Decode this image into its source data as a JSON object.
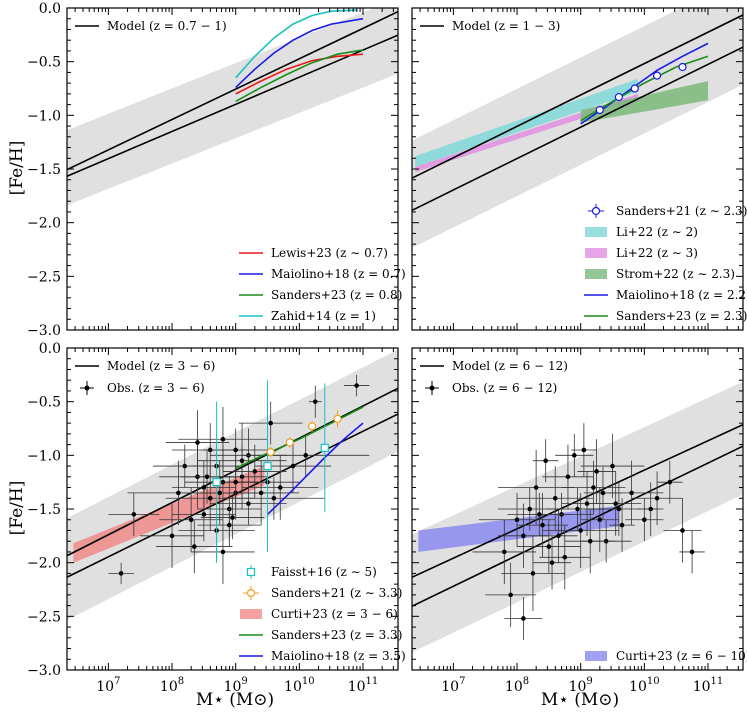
{
  "figure": {
    "xlabel": "M⋆ (M⊙)",
    "ylabel": "[Fe/H]",
    "x_tick_labels": [
      "10^7",
      "10^8",
      "10^9",
      "10^10",
      "10^11"
    ],
    "y_tick_labels": [
      "0.0",
      "−0.5",
      "−1.0",
      "−1.5",
      "−2.0",
      "−2.5",
      "−3.0"
    ],
    "xlim_log10": [
      6.35,
      11.55
    ],
    "ylim": [
      -3.0,
      0.0
    ]
  },
  "chart_data": [
    {
      "type": "line",
      "panel": "top-left",
      "legend_location": "top-left and bottom-right",
      "model": {
        "label": "Model (z = 0.7 − 1)",
        "upper": [
          [
            6.3,
            -1.52
          ],
          [
            11.6,
            -0.02
          ]
        ],
        "lower": [
          [
            6.3,
            -1.58
          ],
          [
            11.6,
            -0.24
          ]
        ],
        "band": [
          [
            6.3,
            -1.15,
            -1.85
          ],
          [
            11.6,
            0.1,
            -0.6
          ]
        ]
      },
      "series": [
        {
          "name": "Lewis+23 (z ∼ 0.7)",
          "color": "#e8191c",
          "points": [
            [
              9.0,
              -0.8
            ],
            [
              9.4,
              -0.68
            ],
            [
              9.8,
              -0.57
            ],
            [
              10.2,
              -0.49
            ],
            [
              10.6,
              -0.45
            ],
            [
              11.0,
              -0.43
            ]
          ]
        },
        {
          "name": "Maiolino+18 (z = 0.7)",
          "color": "#1a1ae6",
          "points": [
            [
              9.0,
              -0.74
            ],
            [
              9.3,
              -0.57
            ],
            [
              9.6,
              -0.42
            ],
            [
              9.9,
              -0.3
            ],
            [
              10.2,
              -0.21
            ],
            [
              10.5,
              -0.15
            ],
            [
              11.0,
              -0.1
            ]
          ]
        },
        {
          "name": "Sanders+23 (z = 0.8)",
          "color": "#1a8c1a",
          "points": [
            [
              9.0,
              -0.87
            ],
            [
              9.4,
              -0.74
            ],
            [
              9.8,
              -0.62
            ],
            [
              10.2,
              -0.51
            ],
            [
              10.6,
              -0.43
            ],
            [
              11.0,
              -0.39
            ]
          ]
        },
        {
          "name": "Zahid+14 (z = 1)",
          "color": "#17c3c3",
          "points": [
            [
              9.0,
              -0.65
            ],
            [
              9.3,
              -0.45
            ],
            [
              9.6,
              -0.28
            ],
            [
              9.9,
              -0.15
            ],
            [
              10.2,
              -0.07
            ],
            [
              10.5,
              -0.03
            ],
            [
              10.9,
              -0.02
            ]
          ]
        }
      ]
    },
    {
      "type": "line",
      "panel": "top-right",
      "legend_location": "top-left and bottom-right",
      "model": {
        "label": "Model (z = 1 − 3)",
        "upper": [
          [
            6.3,
            -1.6
          ],
          [
            11.6,
            -0.05
          ]
        ],
        "lower": [
          [
            6.3,
            -1.9
          ],
          [
            11.6,
            -0.35
          ]
        ],
        "band": [
          [
            6.3,
            -1.25,
            -2.25
          ],
          [
            11.6,
            0.3,
            -0.7
          ]
        ]
      },
      "series": [
        {
          "name": "Sanders+21 (z ∼ 2.3)",
          "color": "#1a1ae6",
          "style": "points",
          "points": [
            [
              9.3,
              -0.95
            ],
            [
              9.6,
              -0.83
            ],
            [
              9.85,
              -0.75
            ],
            [
              10.2,
              -0.63
            ],
            [
              10.6,
              -0.55
            ]
          ]
        },
        {
          "name": "Li+22 (z ∼ 2)",
          "color": "#7fd8d8",
          "style": "band",
          "points": [
            [
              6.4,
              -1.48,
              -1.38
            ],
            [
              9.9,
              -0.78,
              -0.66
            ]
          ]
        },
        {
          "name": "Li+22 (z ∼ 3)",
          "color": "#e08ee0",
          "style": "band",
          "points": [
            [
              6.4,
              -1.53,
              -1.48
            ],
            [
              9.9,
              -0.86,
              -0.8
            ]
          ]
        },
        {
          "name": "Strom+22 (z ∼ 2.3)",
          "color": "#7ab87a",
          "style": "band",
          "points": [
            [
              9.0,
              -1.07,
              -0.95
            ],
            [
              11.0,
              -0.86,
              -0.68
            ]
          ]
        },
        {
          "name": "Maiolino+18 (z = 2.2)",
          "color": "#1a1ae6",
          "points": [
            [
              9.0,
              -1.08
            ],
            [
              9.4,
              -0.92
            ],
            [
              9.8,
              -0.75
            ],
            [
              10.2,
              -0.58
            ],
            [
              10.6,
              -0.45
            ],
            [
              11.0,
              -0.33
            ]
          ]
        },
        {
          "name": "Sanders+23 (z = 2.3)",
          "color": "#1a8c1a",
          "points": [
            [
              9.0,
              -1.05
            ],
            [
              9.5,
              -0.87
            ],
            [
              10.0,
              -0.7
            ],
            [
              10.5,
              -0.55
            ],
            [
              11.0,
              -0.45
            ]
          ]
        }
      ]
    },
    {
      "type": "scatter",
      "panel": "bottom-left",
      "legend_location": "top-left and bottom-right",
      "model": {
        "label": "Model (z = 3 − 6)",
        "upper": [
          [
            6.3,
            -1.95
          ],
          [
            11.6,
            -0.36
          ]
        ],
        "lower": [
          [
            6.3,
            -2.15
          ],
          [
            11.6,
            -0.6
          ]
        ],
        "band": [
          [
            6.3,
            -1.6,
            -2.55
          ],
          [
            11.6,
            0.0,
            -0.95
          ]
        ]
      },
      "observations": {
        "name": "Obs. (z = 3 − 6)",
        "color": "#000000",
        "points": [
          [
            8.2,
            -1.1
          ],
          [
            8.4,
            -1.2
          ],
          [
            8.5,
            -1.3
          ],
          [
            8.6,
            -1.4
          ],
          [
            8.7,
            -1.1
          ],
          [
            8.8,
            -1.25
          ],
          [
            8.9,
            -1.5
          ],
          [
            9.0,
            -1.35
          ],
          [
            9.1,
            -1.2
          ],
          [
            9.2,
            -1.45
          ],
          [
            8.3,
            -1.6
          ],
          [
            8.5,
            -1.55
          ],
          [
            8.7,
            -1.7
          ],
          [
            8.9,
            -1.65
          ],
          [
            9.1,
            -1.05
          ],
          [
            9.3,
            -1.15
          ],
          [
            9.4,
            -1.35
          ],
          [
            9.5,
            -1.25
          ],
          [
            8.6,
            -0.95
          ],
          [
            8.8,
            -0.85
          ],
          [
            9.0,
            -0.95
          ],
          [
            9.2,
            -1.0
          ],
          [
            8.4,
            -0.88
          ],
          [
            8.1,
            -1.35
          ],
          [
            7.4,
            -1.55
          ],
          [
            7.2,
            -2.1
          ],
          [
            8.0,
            -1.75
          ],
          [
            8.35,
            -1.85
          ],
          [
            8.8,
            -1.9
          ],
          [
            9.6,
            -1.4
          ],
          [
            9.9,
            -1.1
          ],
          [
            10.1,
            -1.0
          ],
          [
            10.25,
            -0.5
          ],
          [
            10.9,
            -0.35
          ],
          [
            9.55,
            -0.7
          ],
          [
            9.7,
            -1.3
          ],
          [
            9.0,
            -1.25
          ],
          [
            8.95,
            -1.58
          ],
          [
            8.75,
            -1.35
          ],
          [
            8.55,
            -1.2
          ]
        ],
        "x_errors": [
          0.5,
          0.6,
          0.5,
          0.7,
          0.4,
          0.6,
          0.5,
          0.8,
          0.4,
          0.6,
          0.5,
          0.5,
          0.6,
          0.5,
          0.7,
          0.5,
          0.6,
          0.5,
          0.6,
          0.7,
          0.5,
          0.6,
          0.5,
          0.8,
          0.4,
          0.2,
          0.5,
          0.6,
          0.5,
          0.8,
          0.6,
          1.0,
          0.1,
          0.2,
          0.5,
          0.6,
          0.4,
          0.5,
          0.6,
          0.4
        ],
        "y_errors": [
          0.2,
          0.3,
          0.25,
          0.3,
          0.2,
          0.35,
          0.3,
          0.25,
          0.3,
          0.2,
          0.3,
          0.25,
          0.3,
          0.2,
          0.35,
          0.25,
          0.3,
          0.2,
          0.25,
          0.3,
          0.2,
          0.25,
          0.3,
          0.3,
          0.2,
          0.1,
          0.3,
          0.25,
          0.3,
          0.2,
          0.25,
          0.2,
          0.15,
          0.1,
          0.2,
          0.3,
          0.25,
          0.2,
          0.3,
          0.25
        ]
      },
      "series": [
        {
          "name": "Faisst+16 (z ∼ 5)",
          "color": "#17c3c3",
          "style": "points",
          "points": [
            [
              8.7,
              -1.25
            ],
            [
              9.5,
              -1.1
            ],
            [
              10.4,
              -0.93
            ]
          ],
          "y_errors": [
            0.75,
            0.8,
            0.6
          ]
        },
        {
          "name": "Sanders+21 (z ∼ 3.3)",
          "color": "#f0a020",
          "style": "points",
          "points": [
            [
              9.55,
              -0.97
            ],
            [
              9.85,
              -0.88
            ],
            [
              10.2,
              -0.73
            ],
            [
              10.6,
              -0.66
            ]
          ],
          "y_errors": [
            0.05,
            0.05,
            0.05,
            0.08
          ]
        },
        {
          "name": "Curti+23 (z = 3 − 6)",
          "color": "#f08a8a",
          "style": "band",
          "points": [
            [
              6.45,
              -2.0,
              -1.82
            ],
            [
              9.45,
              -1.28,
              -1.1
            ]
          ]
        },
        {
          "name": "Sanders+23 (z = 3.3)",
          "color": "#1a8c1a",
          "points": [
            [
              9.0,
              -1.12
            ],
            [
              9.5,
              -0.98
            ],
            [
              10.0,
              -0.85
            ],
            [
              10.5,
              -0.7
            ],
            [
              11.0,
              -0.55
            ]
          ]
        },
        {
          "name": "Maiolino+18 (z = 3.5)",
          "color": "#1a1ae6",
          "points": [
            [
              9.5,
              -1.55
            ],
            [
              9.8,
              -1.38
            ],
            [
              10.1,
              -1.2
            ],
            [
              10.4,
              -1.02
            ],
            [
              10.7,
              -0.85
            ],
            [
              11.0,
              -0.7
            ]
          ]
        }
      ]
    },
    {
      "type": "scatter",
      "panel": "bottom-right",
      "legend_location": "top-left and bottom-right",
      "model": {
        "label": "Model (z = 6 − 12)",
        "upper": [
          [
            6.3,
            -2.15
          ],
          [
            11.6,
            -0.7
          ]
        ],
        "lower": [
          [
            6.3,
            -2.42
          ],
          [
            11.6,
            -0.9
          ]
        ],
        "band": [
          [
            6.3,
            -1.75,
            -2.85
          ],
          [
            11.6,
            -0.3,
            -1.35
          ]
        ]
      },
      "observations": {
        "name": "Obs. (z = 6 − 12)",
        "color": "#000000",
        "points": [
          [
            7.8,
            -1.9
          ],
          [
            8.0,
            -1.6
          ],
          [
            8.1,
            -1.75
          ],
          [
            8.2,
            -1.5
          ],
          [
            8.3,
            -1.3
          ],
          [
            8.4,
            -1.65
          ],
          [
            8.5,
            -1.85
          ],
          [
            8.6,
            -1.4
          ],
          [
            8.7,
            -1.55
          ],
          [
            8.8,
            -1.2
          ],
          [
            8.9,
            -1.0
          ],
          [
            9.0,
            -1.7
          ],
          [
            9.1,
            -1.45
          ],
          [
            9.2,
            -1.3
          ],
          [
            9.3,
            -1.6
          ],
          [
            9.4,
            -1.8
          ],
          [
            9.5,
            -1.1
          ],
          [
            9.6,
            -1.5
          ],
          [
            9.8,
            -1.35
          ],
          [
            10.0,
            -1.6
          ],
          [
            10.2,
            -1.4
          ],
          [
            10.4,
            -1.25
          ],
          [
            10.6,
            -1.7
          ],
          [
            10.75,
            -1.9
          ],
          [
            8.25,
            -2.1
          ],
          [
            8.55,
            -2.0
          ],
          [
            7.9,
            -2.3
          ],
          [
            8.1,
            -2.52
          ],
          [
            8.45,
            -1.05
          ],
          [
            9.05,
            -0.95
          ],
          [
            9.25,
            -1.15
          ],
          [
            9.65,
            -1.65
          ],
          [
            8.75,
            -1.95
          ],
          [
            8.95,
            -1.5
          ],
          [
            9.35,
            -1.35
          ],
          [
            9.55,
            -1.45
          ],
          [
            8.35,
            -1.55
          ],
          [
            8.65,
            -1.75
          ],
          [
            9.15,
            -1.8
          ],
          [
            10.1,
            -1.5
          ]
        ],
        "x_errors": [
          0.5,
          0.6,
          0.4,
          0.5,
          0.6,
          0.4,
          0.5,
          0.6,
          0.5,
          0.4,
          0.3,
          0.6,
          0.4,
          0.5,
          0.3,
          0.4,
          0.5,
          0.6,
          0.5,
          0.3,
          0.4,
          0.2,
          0.3,
          0.2,
          0.5,
          0.3,
          0.4,
          0.3,
          0.2,
          0.2,
          0.3,
          0.2,
          0.4,
          0.5,
          0.3,
          0.4,
          0.5,
          0.3,
          0.4,
          0.2
        ],
        "y_errors": [
          0.3,
          0.25,
          0.3,
          0.2,
          0.35,
          0.3,
          0.25,
          0.3,
          0.2,
          0.3,
          0.2,
          0.35,
          0.3,
          0.25,
          0.3,
          0.2,
          0.3,
          0.25,
          0.3,
          0.2,
          0.25,
          0.2,
          0.3,
          0.2,
          0.35,
          0.25,
          0.3,
          0.2,
          0.2,
          0.25,
          0.3,
          0.25,
          0.3,
          0.2,
          0.25,
          0.3,
          0.2,
          0.25,
          0.3,
          0.25
        ]
      },
      "series": [
        {
          "name": "Curti+23 (z = 6 − 10)",
          "color": "#8a8aee",
          "style": "band",
          "points": [
            [
              6.45,
              -1.9,
              -1.7
            ],
            [
              9.6,
              -1.66,
              -1.47
            ]
          ]
        }
      ]
    }
  ]
}
